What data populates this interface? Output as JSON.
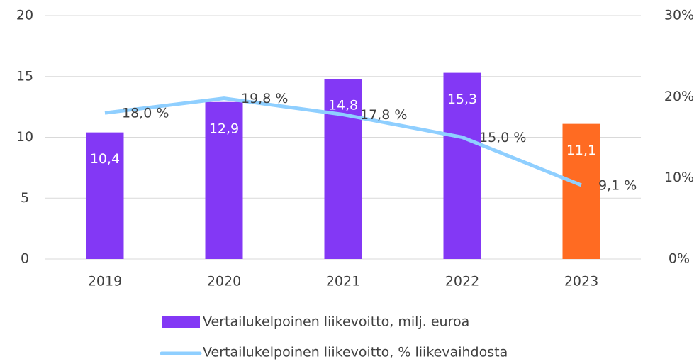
{
  "chart_data": {
    "type": "bar",
    "categories": [
      "2019",
      "2020",
      "2021",
      "2022",
      "2023"
    ],
    "series": [
      {
        "name": "Vertailukelpoinen liikevoitto, milj. euroa",
        "type": "bar",
        "color": "#8338f5",
        "colors": [
          "#8338f5",
          "#8338f5",
          "#8338f5",
          "#8338f5",
          "#ff6b22"
        ],
        "values": [
          10.4,
          12.9,
          14.8,
          15.3,
          11.1
        ],
        "value_labels": [
          "10,4",
          "12,9",
          "14,8",
          "15,3",
          "11,1"
        ]
      },
      {
        "name": "Vertailukelpoinen liikevoitto, % liikevaihdosta",
        "type": "line",
        "axis": "y2",
        "color": "#8fcfff",
        "values": [
          18.0,
          19.8,
          17.8,
          15.0,
          9.1
        ],
        "value_labels": [
          "18,0 %",
          "19,8 %",
          "17,8 %",
          "15,0 %",
          "9,1 %"
        ]
      }
    ],
    "ylim": [
      0,
      20
    ],
    "yticks": [
      0,
      5,
      10,
      15,
      20
    ],
    "y2lim": [
      0,
      30
    ],
    "y2ticks": [
      {
        "value": 0,
        "label": "0%"
      },
      {
        "value": 10,
        "label": "10%"
      },
      {
        "value": 20,
        "label": "20%"
      },
      {
        "value": 30,
        "label": "30%"
      }
    ],
    "grid": true
  }
}
